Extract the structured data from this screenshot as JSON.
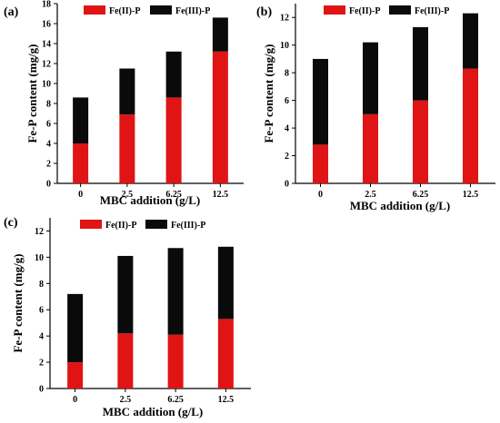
{
  "chart_data": [
    {
      "type": "bar",
      "stacked": true,
      "panel": "(a)",
      "categories": [
        "0",
        "2.5",
        "6.25",
        "12.5"
      ],
      "series": [
        {
          "name": "Fe(II)-P",
          "values": [
            4.0,
            6.9,
            8.6,
            13.2
          ]
        },
        {
          "name": "Fe(III)-P",
          "values": [
            4.6,
            4.6,
            4.6,
            3.4
          ]
        }
      ],
      "totals": [
        8.6,
        11.5,
        13.2,
        16.6
      ],
      "xlabel": "MBC addition  (g/L)",
      "ylabel": "Fe-P content (mg/g)",
      "ylim": [
        0,
        18
      ],
      "yticks": [
        "0",
        "2",
        "4",
        "6",
        "8",
        "10",
        "12",
        "14",
        "16",
        "18"
      ],
      "legend_position": "top",
      "colors": {
        "Fe(II)-P": "#e01414",
        "Fe(III)-P": "#0a0a0a"
      }
    },
    {
      "type": "bar",
      "stacked": true,
      "panel": "(b)",
      "categories": [
        "0",
        "2.5",
        "6.25",
        "12.5"
      ],
      "series": [
        {
          "name": "Fe(II)-P",
          "values": [
            2.8,
            5.0,
            6.0,
            8.3
          ]
        },
        {
          "name": "Fe(III)-P",
          "values": [
            6.2,
            5.2,
            5.3,
            4.0
          ]
        }
      ],
      "totals": [
        9.0,
        10.2,
        11.3,
        12.3
      ],
      "xlabel": "MBC addition  (g/L)",
      "ylabel": "Fe-P content (mg/g)",
      "ylim": [
        0,
        13
      ],
      "yticks": [
        "0",
        "2",
        "4",
        "6",
        "8",
        "10",
        "12"
      ],
      "legend_position": "top",
      "colors": {
        "Fe(II)-P": "#e01414",
        "Fe(III)-P": "#0a0a0a"
      }
    },
    {
      "type": "bar",
      "stacked": true,
      "panel": "(c)",
      "categories": [
        "0",
        "2.5",
        "6.25",
        "12.5"
      ],
      "series": [
        {
          "name": "Fe(II)-P",
          "values": [
            2.0,
            4.2,
            4.1,
            5.3
          ]
        },
        {
          "name": "Fe(III)-P",
          "values": [
            5.2,
            5.9,
            6.6,
            5.5
          ]
        }
      ],
      "totals": [
        7.2,
        10.1,
        10.7,
        10.8
      ],
      "xlabel": "MBC  addition (g/L)",
      "ylabel": "Fe-P content (mg/g)",
      "ylim": [
        0,
        13
      ],
      "yticks": [
        "0",
        "2",
        "4",
        "6",
        "8",
        "10",
        "12"
      ],
      "legend_position": "top",
      "colors": {
        "Fe(II)-P": "#e01414",
        "Fe(III)-P": "#0a0a0a"
      }
    }
  ]
}
